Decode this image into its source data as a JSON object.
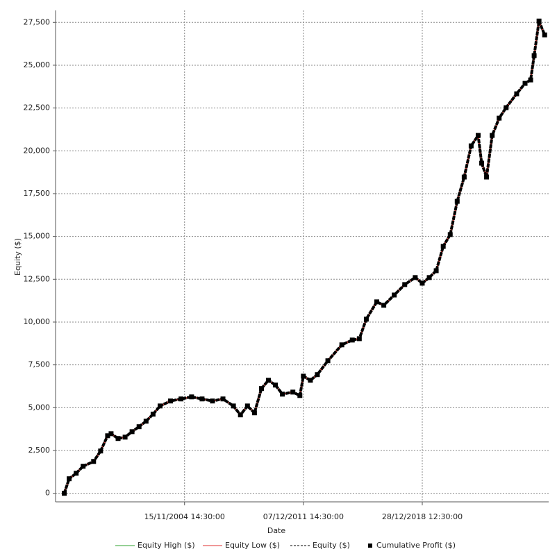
{
  "chart_data": {
    "type": "line",
    "y_label": "Equity ($)",
    "x_label": "Date",
    "x": [
      "1997-09-25",
      "1998-01-09",
      "1998-06-10",
      "1998-11-08",
      "1999-06-23",
      "1999-11-22",
      "2000-04-22",
      "2000-07-06",
      "2000-12-05",
      "2001-05-06",
      "2001-10-04",
      "2002-03-05",
      "2002-08-04",
      "2003-01-03",
      "2003-06-04",
      "2004-01-16",
      "2004-08-31",
      "2005-04-17",
      "2005-11-30",
      "2006-07-14",
      "2007-02-27",
      "2007-10-12",
      "2008-03-12",
      "2008-08-11",
      "2009-01-10",
      "2009-06-11",
      "2009-11-09",
      "2010-04-10",
      "2010-09-08",
      "2011-04-23",
      "2011-09-22",
      "2011-12-07",
      "2012-05-07",
      "2012-10-05",
      "2013-05-21",
      "2014-03-20",
      "2014-11-02",
      "2015-04-03",
      "2015-09-02",
      "2016-04-16",
      "2016-09-15",
      "2017-04-30",
      "2017-12-13",
      "2018-07-29",
      "2018-12-28",
      "2019-05-29",
      "2019-10-27",
      "2020-03-27",
      "2020-08-26",
      "2021-01-24",
      "2021-06-25",
      "2021-11-23",
      "2022-04-24",
      "2022-07-09",
      "2022-10-23",
      "2023-02-22",
      "2023-07-23",
      "2023-12-21",
      "2024-08-06",
      "2025-02-04",
      "2025-06-05",
      "2025-08-20",
      "2025-12-04",
      "2026-04-05"
    ],
    "series": [
      {
        "name": "Equity High ($)",
        "color": "#2ca02c",
        "style": "line",
        "values": [
          0,
          850,
          1170,
          1580,
          1860,
          2470,
          3360,
          3480,
          3200,
          3280,
          3600,
          3890,
          4210,
          4620,
          5100,
          5390,
          5510,
          5630,
          5510,
          5390,
          5510,
          5100,
          4580,
          5100,
          4700,
          6120,
          6600,
          6320,
          5790,
          5910,
          5710,
          6840,
          6600,
          6930,
          7740,
          8670,
          8950,
          9030,
          10170,
          11180,
          10980,
          11580,
          12190,
          12600,
          12270,
          12600,
          13000,
          14420,
          15110,
          17050,
          18470,
          20290,
          20900,
          19280,
          18470,
          20900,
          21910,
          22520,
          23330,
          23940,
          24140,
          25560,
          27580,
          26770
        ]
      },
      {
        "name": "Equity Low ($)",
        "color": "#e03030",
        "style": "line",
        "values": [
          0,
          850,
          1170,
          1580,
          1860,
          2470,
          3360,
          3480,
          3200,
          3280,
          3600,
          3890,
          4210,
          4620,
          5100,
          5390,
          5510,
          5630,
          5510,
          5390,
          5510,
          5100,
          4580,
          5100,
          4700,
          6120,
          6600,
          6320,
          5790,
          5910,
          5710,
          6840,
          6600,
          6930,
          7740,
          8670,
          8950,
          9030,
          10170,
          11180,
          10980,
          11580,
          12190,
          12600,
          12270,
          12600,
          13000,
          14420,
          15110,
          17050,
          18470,
          20290,
          20900,
          19280,
          18470,
          20900,
          21910,
          22520,
          23330,
          23940,
          24140,
          25560,
          27580,
          26770
        ]
      },
      {
        "name": "Equity ($)",
        "color": "#000000",
        "style": "dashed",
        "values": [
          0,
          850,
          1170,
          1580,
          1860,
          2470,
          3360,
          3480,
          3200,
          3280,
          3600,
          3890,
          4210,
          4620,
          5100,
          5390,
          5510,
          5630,
          5510,
          5390,
          5510,
          5100,
          4580,
          5100,
          4700,
          6120,
          6600,
          6320,
          5790,
          5910,
          5710,
          6840,
          6600,
          6930,
          7740,
          8670,
          8950,
          9030,
          10170,
          11180,
          10980,
          11580,
          12190,
          12600,
          12270,
          12600,
          13000,
          14420,
          15110,
          17050,
          18470,
          20290,
          20900,
          19280,
          18470,
          20900,
          21910,
          22520,
          23330,
          23940,
          24140,
          25560,
          27580,
          26770
        ]
      },
      {
        "name": "Cumulative Profit ($)",
        "color": "#000000",
        "style": "markers",
        "values": [
          0,
          850,
          1170,
          1580,
          1860,
          2470,
          3360,
          3480,
          3200,
          3280,
          3600,
          3890,
          4210,
          4620,
          5100,
          5390,
          5510,
          5630,
          5510,
          5390,
          5510,
          5100,
          4580,
          5100,
          4700,
          6120,
          6600,
          6320,
          5790,
          5910,
          5710,
          6840,
          6600,
          6930,
          7740,
          8670,
          8950,
          9030,
          10170,
          11180,
          10980,
          11580,
          12190,
          12600,
          12270,
          12600,
          13000,
          14420,
          15110,
          17050,
          18470,
          20290,
          20900,
          19280,
          18470,
          20900,
          21910,
          22520,
          23330,
          23940,
          24140,
          25560,
          27580,
          26770
        ]
      }
    ],
    "xlim": [
      "1997-03-20",
      "2026-07-01"
    ],
    "xticks": [
      {
        "value": "2004-11-15T14:30:00",
        "label": "15/11/2004 14:30:00"
      },
      {
        "value": "2011-12-07T14:30:00",
        "label": "07/12/2011 14:30:00"
      },
      {
        "value": "2018-12-28T12:30:00",
        "label": "28/12/2018 12:30:00"
      }
    ],
    "ylim": [
      -500,
      28200
    ],
    "yticks": [
      0,
      {
        "value": 2500,
        "label": "2,500"
      },
      {
        "value": 5000,
        "label": "5,000"
      },
      {
        "value": 7500,
        "label": "7,500"
      },
      {
        "value": 10000,
        "label": "10,000"
      },
      {
        "value": 12500,
        "label": "12,500"
      },
      {
        "value": 15000,
        "label": "15,000"
      },
      {
        "value": 17500,
        "label": "17,500"
      },
      {
        "value": 20000,
        "label": "20,000"
      },
      {
        "value": 22500,
        "label": "22,500"
      },
      {
        "value": 25000,
        "label": "25,000"
      },
      {
        "value": 27500,
        "label": "27,500"
      }
    ],
    "grid": true,
    "legend": "bottom"
  }
}
